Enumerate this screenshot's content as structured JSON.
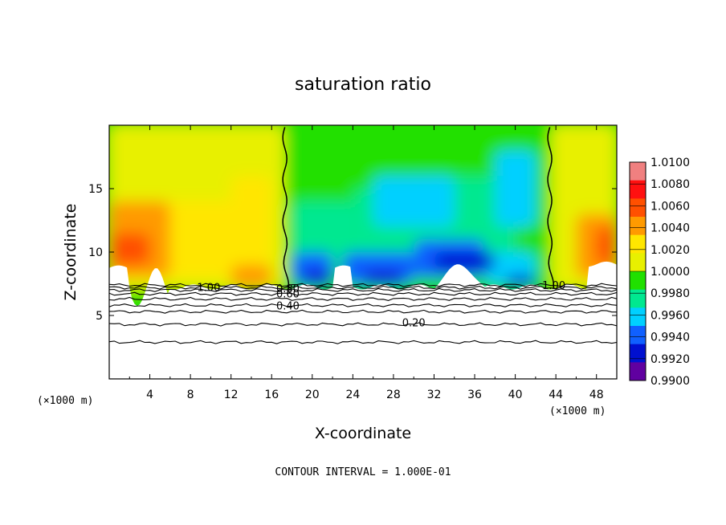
{
  "chart_data": {
    "type": "heatmap",
    "title": "saturation ratio",
    "xlabel": "X-coordinate",
    "ylabel": "Z-coordinate",
    "x_unit_left": "(×1000 m)",
    "x_unit_right": "(×1000 m)",
    "xlim": [
      0,
      50
    ],
    "ylim": [
      0,
      20
    ],
    "x_ticks": [
      4,
      8,
      12,
      16,
      20,
      24,
      28,
      32,
      36,
      40,
      44,
      48
    ],
    "y_ticks": [
      5,
      10,
      15
    ],
    "footer": "CONTOUR INTERVAL = 1.000E-01",
    "colorbar": {
      "levels": [
        "1.0100",
        "1.0080",
        "1.0060",
        "1.0040",
        "1.0020",
        "1.0000",
        "0.9980",
        "0.9960",
        "0.9940",
        "0.9920",
        "0.9900"
      ],
      "colors": [
        "#f08080",
        "#ff1010",
        "#ff5000",
        "#ff9a00",
        "#ffe600",
        "#e8f000",
        "#20e000",
        "#00e890",
        "#00d0ff",
        "#1060ff",
        "#0010d0",
        "#6000a0"
      ]
    },
    "contour_labels": [
      {
        "text": "1.00",
        "x": 9.8,
        "z": 7.25
      },
      {
        "text": "0.80",
        "x": 17.6,
        "z": 7.15
      },
      {
        "text": "0.60",
        "x": 17.6,
        "z": 6.75
      },
      {
        "text": "0.40",
        "x": 17.6,
        "z": 5.8
      },
      {
        "text": "0.20",
        "x": 30.0,
        "z": 4.45
      },
      {
        "text": "1.00",
        "x": 43.8,
        "z": 7.4
      }
    ],
    "contour_lines_z": [
      7.4,
      7.2,
      7.0,
      6.7,
      6.3,
      5.8,
      5.3,
      4.3,
      2.9
    ],
    "saturated_contour_x_low": 17.3,
    "saturated_contour_x_high": 43.4
  }
}
